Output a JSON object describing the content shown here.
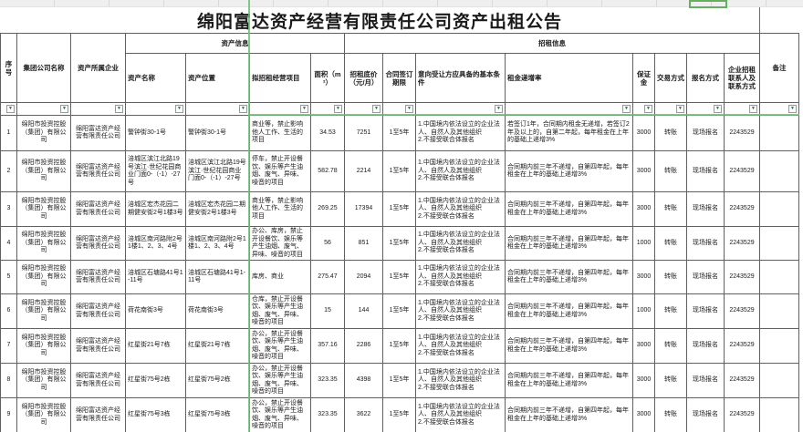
{
  "title": "绵阳富达资产经营有限责任公司资产出租公告",
  "filter_icon": "▼",
  "header": {
    "seq": "序号",
    "group_company": "集团公司名称",
    "owner": "资产所属企业",
    "asset_info_group": "资产信息",
    "rent_info_group": "招租信息",
    "remark": "备注",
    "asset_name": "资产名称",
    "asset_location": "资产位置",
    "project": "拟招租经营项目",
    "area": "面积（m²）",
    "base_price": "招租底价（元/月）",
    "term": "合同签订期限",
    "conditions": "意向受让方应具备的基本条件",
    "increase": "租金递增率",
    "deposit": "保证金",
    "trade_mode": "交易方式",
    "signup_mode": "报名方式",
    "contact": "企业招租联系人及联系方式"
  },
  "rows": [
    {
      "seq": "1",
      "group_company": "绵阳市投资控股（集团）有限公司",
      "owner": "绵阳富达资产经营有限责任公司",
      "name": "警钟街30-1号",
      "location": "警钟街30-1号",
      "project": "商业等，禁止影响他人工作、生活的项目",
      "area": "34.53",
      "price": "7251",
      "term": "1至5年",
      "conditions": "1.中国境内依法设立的企业法人、自然人及其他组织\n2.不接受联合体报名",
      "increase": "若签订1年，合同期内租金无递增，若签订2年及以上的，自第二年起，每年租金在上年的基础上递增3%",
      "deposit": "3000",
      "trade": "转账",
      "signup": "现场报名",
      "contact": "2243529",
      "remark": ""
    },
    {
      "seq": "2",
      "group_company": "绵阳市投资控股（集团）有限公司",
      "owner": "绵阳富达资产经营有限责任公司",
      "name": "涪城区滨江北路19号滨江·世纪花园商业门面0-（-1）-27号",
      "location": "涪城区滨江北路19号滨江·世纪花园商业门面0-（-1）-27号",
      "project": "停车，禁止开设餐饮、娱乐等产生油烟、废气、异味、噪音的项目",
      "area": "582.78",
      "price": "2214",
      "term": "1至5年",
      "conditions": "1.中国境内依法设立的企业法人、自然人及其他组织\n2.不接受联合体报名",
      "increase": "合同期内前三年不递增，自第四年起，每年租金在上年的基础上递增3%",
      "deposit": "3000",
      "trade": "转账",
      "signup": "现场报名",
      "contact": "2243529",
      "remark": ""
    },
    {
      "seq": "3",
      "group_company": "绵阳市投资控股（集团）有限公司",
      "owner": "绵阳富达资产经营有限责任公司",
      "name": "涪城区宏杰花园二期健安街2号1楼3号",
      "location": "涪城区宏杰花园二期健安街2号1楼3号",
      "project": "商业等，禁止影响他人工作、生活的项目",
      "area": "269.25",
      "price": "17394",
      "term": "1至5年",
      "conditions": "1.中国境内依法设立的企业法人、自然人及其他组织\n2.不接受联合体报名",
      "increase": "合同期内前三年不递增，自第四年起，每年租金在上年的基础上递增3%",
      "deposit": "3000",
      "trade": "转账",
      "signup": "现场报名",
      "contact": "2243529",
      "remark": ""
    },
    {
      "seq": "4",
      "group_company": "绵阳市投资控股（集团）有限公司",
      "owner": "绵阳富达资产经营有限责任公司",
      "name": "涪城区南河路附2号1楼1、2、3、4号",
      "location": "涪城区南河路附2号1楼1、2、3、4号",
      "project": "办公、库房，禁止开设餐饮、娱乐等产生油烟、废气、异味、噪音的项目",
      "area": "56",
      "price": "851",
      "term": "1至5年",
      "conditions": "1.中国境内依法设立的企业法人、自然人及其他组织\n2.不接受联合体报名",
      "increase": "合同期内前三年不递增，自第四年起，每年租金在上年的基础上递增3%",
      "deposit": "1000",
      "trade": "转账",
      "signup": "现场报名",
      "contact": "2243529",
      "remark": ""
    },
    {
      "seq": "5",
      "group_company": "绵阳市投资控股（集团）有限公司",
      "owner": "绵阳富达资产经营有限责任公司",
      "name": "涪城区石塘路41号1-11号",
      "location": "涪城区石塘路41号1-11号",
      "project": "库房、商业",
      "area": "275.47",
      "price": "2094",
      "term": "1至5年",
      "conditions": "1.中国境内依法设立的企业法人、自然人及其他组织\n2.不接受联合体报名",
      "increase": "合同期内前三年不递增，自第四年起，每年租金在上年的基础上递增3%",
      "deposit": "3000",
      "trade": "转账",
      "signup": "现场报名",
      "contact": "2243529",
      "remark": ""
    },
    {
      "seq": "6",
      "group_company": "绵阳市投资控股（集团）有限公司",
      "owner": "绵阳富达资产经营有限责任公司",
      "name": "荷花南街3号",
      "location": "荷花南街3号",
      "project": "仓库，禁止开设餐饮、娱乐等产生油烟、废气、异味、噪音的项目",
      "area": "15",
      "price": "144",
      "term": "1至5年",
      "conditions": "1.中国境内依法设立的企业法人、自然人及其他组织\n2.不接受联合体报名",
      "increase": "合同期内前三年不递增，自第四年起，每年租金在上年的基础上递增3%",
      "deposit": "1000",
      "trade": "转账",
      "signup": "现场报名",
      "contact": "2243529",
      "remark": ""
    },
    {
      "seq": "7",
      "group_company": "绵阳市投资控股（集团）有限公司",
      "owner": "绵阳富达资产经营有限责任公司",
      "name": "红星街21号7栋",
      "location": "红星街21号7栋",
      "project": "办公，禁止开设餐饮、娱乐等产生油烟、废气、异味、噪音的项目",
      "area": "357.16",
      "price": "2286",
      "term": "1至5年",
      "conditions": "1.中国境内依法设立的企业法人、自然人及其他组织\n2.不接受联合体报名",
      "increase": "合同期内前三年不递增，自第四年起，每年租金在上年的基础上递增3%",
      "deposit": "3000",
      "trade": "转账",
      "signup": "现场报名",
      "contact": "2243529",
      "remark": ""
    },
    {
      "seq": "8",
      "group_company": "绵阳市投资控股（集团）有限公司",
      "owner": "绵阳富达资产经营有限责任公司",
      "name": "红星街75号2栋",
      "location": "红星街75号2栋",
      "project": "办公，禁止开设餐饮、娱乐等产生油烟、废气、异味、噪音的项目",
      "area": "323.35",
      "price": "4398",
      "term": "1至5年",
      "conditions": "1.中国境内依法设立的企业法人、自然人及其他组织\n2.不接受联合体报名",
      "increase": "合同期内前三年不递增，自第四年起，每年租金在上年的基础上递增3%",
      "deposit": "3000",
      "trade": "转账",
      "signup": "现场报名",
      "contact": "2243529",
      "remark": ""
    },
    {
      "seq": "9",
      "group_company": "绵阳市投资控股（集团）有限公司",
      "owner": "绵阳富达资产经营有限责任公司",
      "name": "红星街75号3栋",
      "location": "红星街75号3栋",
      "project": "办公，禁止开设餐饮、娱乐等产生油烟、废气、异味、噪音的项目",
      "area": "323.35",
      "price": "3622",
      "term": "1至5年",
      "conditions": "1.中国境内依法设立的企业法人、自然人及其他组织\n2.不接受联合体报名",
      "increase": "合同期内前三年不递增，自第四年起，每年租金在上年的基础上递增3%",
      "deposit": "3000",
      "trade": "转账",
      "signup": "现场报名",
      "contact": "2243529",
      "remark": ""
    }
  ]
}
